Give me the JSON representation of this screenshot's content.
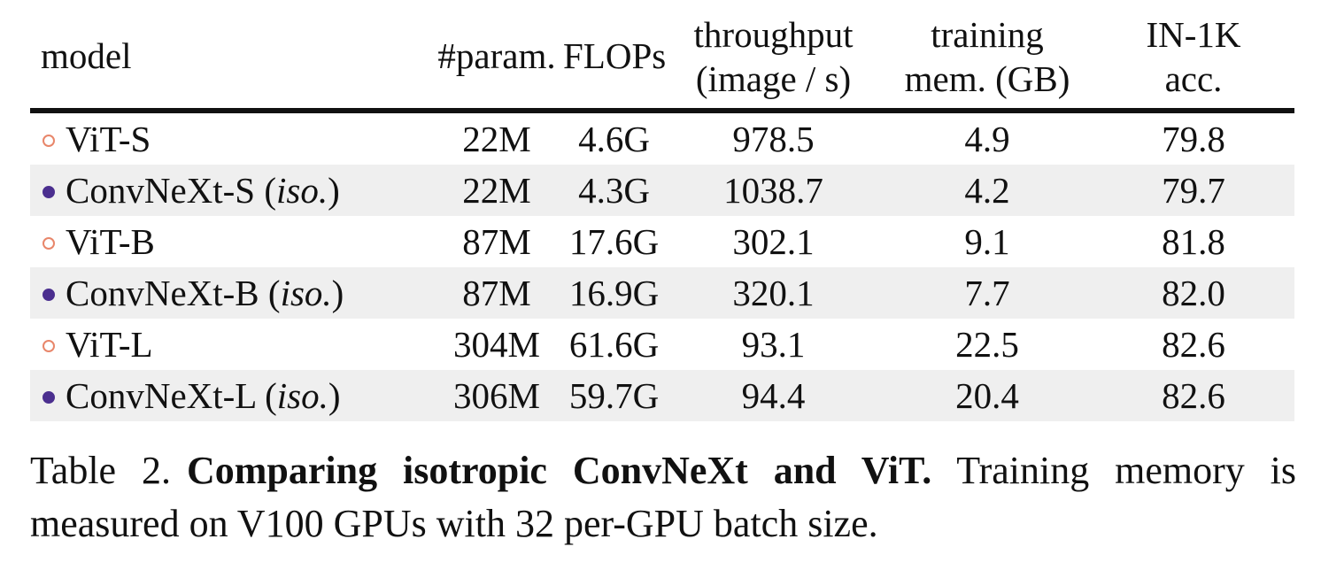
{
  "table": {
    "headers": [
      {
        "line1": "model",
        "line2": ""
      },
      {
        "line1": "#param.",
        "line2": ""
      },
      {
        "line1": "FLOPs",
        "line2": ""
      },
      {
        "line1": "throughput",
        "line2": "(image / s)"
      },
      {
        "line1": "training",
        "line2": "mem. (GB)"
      },
      {
        "line1": "IN-1K",
        "line2": "acc."
      }
    ],
    "rows": [
      {
        "marker": "open",
        "name": "ViT-S",
        "suffix_open": "",
        "suffix_italic": "",
        "suffix_close": "",
        "params": "22M",
        "flops": "4.6G",
        "throughput": "978.5",
        "memory": "4.9",
        "accuracy": "79.8"
      },
      {
        "marker": "filled",
        "name": "ConvNeXt-S",
        "suffix_open": " (",
        "suffix_italic": "iso.",
        "suffix_close": ")",
        "params": "22M",
        "flops": "4.3G",
        "throughput": "1038.7",
        "memory": "4.2",
        "accuracy": "79.7"
      },
      {
        "marker": "open",
        "name": "ViT-B",
        "suffix_open": "",
        "suffix_italic": "",
        "suffix_close": "",
        "params": "87M",
        "flops": "17.6G",
        "throughput": "302.1",
        "memory": "9.1",
        "accuracy": "81.8"
      },
      {
        "marker": "filled",
        "name": "ConvNeXt-B",
        "suffix_open": " (",
        "suffix_italic": "iso.",
        "suffix_close": ")",
        "params": "87M",
        "flops": "16.9G",
        "throughput": "320.1",
        "memory": "7.7",
        "accuracy": "82.0"
      },
      {
        "marker": "open",
        "name": "ViT-L",
        "suffix_open": "",
        "suffix_italic": "",
        "suffix_close": "",
        "params": "304M",
        "flops": "61.6G",
        "throughput": "93.1",
        "memory": "22.5",
        "accuracy": "82.6"
      },
      {
        "marker": "filled",
        "name": "ConvNeXt-L",
        "suffix_open": " (",
        "suffix_italic": "iso.",
        "suffix_close": ")",
        "params": "306M",
        "flops": "59.7G",
        "throughput": "94.4",
        "memory": "20.4",
        "accuracy": "82.6"
      }
    ],
    "colors": {
      "vit_marker": "#e8866a",
      "convnext_marker": "#4b2f8f",
      "shade": "#efefef"
    }
  },
  "caption": {
    "label": "Table 2.",
    "bold": "Comparing isotropic ConvNeXt and ViT.",
    "text": " Training memory is measured on V100 GPUs with 32 per-GPU batch size."
  }
}
